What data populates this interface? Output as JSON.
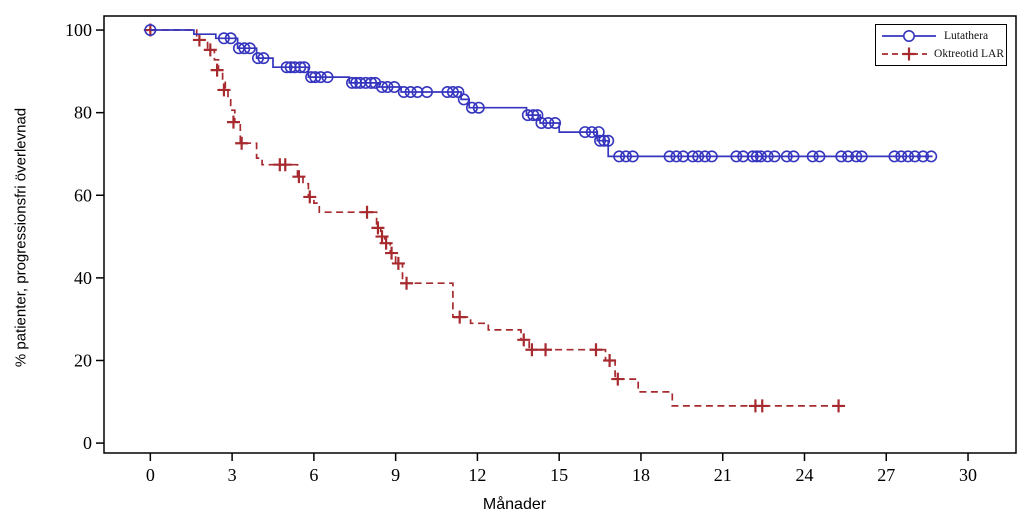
{
  "chart_data": {
    "type": "line",
    "subtype": "kaplan-meier-step",
    "title": "",
    "xlabel": "Månader",
    "ylabel": "% patienter, progressionsfri överlevnad",
    "xlim": [
      -1.7,
      31.76
    ],
    "ylim": [
      -2.4,
      103.4
    ],
    "x_ticks": [
      0,
      3,
      6,
      9,
      12,
      15,
      18,
      21,
      24,
      27,
      30
    ],
    "y_ticks": [
      0,
      20,
      40,
      60,
      80,
      100
    ],
    "grid": false,
    "legend_position": "top-right",
    "frame": true,
    "axis_color": "#000000",
    "series": [
      {
        "name": "Lutathera",
        "color": "#3535BE",
        "line_style": "solid",
        "marker": "circle",
        "steps": [
          [
            0,
            100
          ],
          [
            1.6,
            99
          ],
          [
            2.4,
            98
          ],
          [
            3.2,
            95.6
          ],
          [
            3.9,
            93.2
          ],
          [
            4.5,
            91.0
          ],
          [
            5.8,
            88.6
          ],
          [
            7.3,
            87.2
          ],
          [
            8.4,
            86.2
          ],
          [
            9.2,
            85.0
          ],
          [
            11.4,
            83.2
          ],
          [
            11.7,
            81.2
          ],
          [
            13.8,
            79.4
          ],
          [
            14.3,
            77.5
          ],
          [
            15.0,
            75.3
          ],
          [
            16.4,
            73.2
          ],
          [
            16.8,
            69.4
          ],
          [
            28.7,
            69.4
          ]
        ],
        "censor_marks": [
          [
            0,
            100
          ],
          [
            2.7,
            98
          ],
          [
            2.95,
            98
          ],
          [
            3.25,
            95.6
          ],
          [
            3.45,
            95.6
          ],
          [
            3.65,
            95.6
          ],
          [
            3.95,
            93.2
          ],
          [
            4.15,
            93.2
          ],
          [
            5.0,
            91.0
          ],
          [
            5.15,
            91.0
          ],
          [
            5.3,
            91.0
          ],
          [
            5.5,
            91.0
          ],
          [
            5.65,
            91.0
          ],
          [
            5.9,
            88.6
          ],
          [
            6.05,
            88.6
          ],
          [
            6.25,
            88.6
          ],
          [
            6.5,
            88.6
          ],
          [
            7.4,
            87.2
          ],
          [
            7.55,
            87.2
          ],
          [
            7.7,
            87.2
          ],
          [
            7.9,
            87.2
          ],
          [
            8.1,
            87.2
          ],
          [
            8.25,
            87.2
          ],
          [
            8.5,
            86.2
          ],
          [
            8.7,
            86.2
          ],
          [
            8.95,
            86.2
          ],
          [
            9.3,
            85.0
          ],
          [
            9.55,
            85.0
          ],
          [
            9.8,
            85.0
          ],
          [
            10.15,
            85.0
          ],
          [
            10.9,
            85.0
          ],
          [
            11.1,
            85.0
          ],
          [
            11.3,
            85.0
          ],
          [
            11.5,
            83.2
          ],
          [
            11.8,
            81.2
          ],
          [
            12.05,
            81.2
          ],
          [
            13.85,
            79.4
          ],
          [
            14.05,
            79.4
          ],
          [
            14.2,
            79.4
          ],
          [
            14.35,
            77.5
          ],
          [
            14.6,
            77.5
          ],
          [
            14.85,
            77.5
          ],
          [
            15.95,
            75.3
          ],
          [
            16.2,
            75.3
          ],
          [
            16.45,
            75.3
          ],
          [
            16.5,
            73.2
          ],
          [
            16.65,
            73.2
          ],
          [
            16.8,
            73.2
          ],
          [
            17.2,
            69.4
          ],
          [
            17.45,
            69.4
          ],
          [
            17.7,
            69.4
          ],
          [
            19.05,
            69.4
          ],
          [
            19.3,
            69.4
          ],
          [
            19.55,
            69.4
          ],
          [
            19.9,
            69.4
          ],
          [
            20.1,
            69.4
          ],
          [
            20.35,
            69.4
          ],
          [
            20.6,
            69.4
          ],
          [
            21.5,
            69.4
          ],
          [
            21.75,
            69.4
          ],
          [
            22.1,
            69.4
          ],
          [
            22.25,
            69.4
          ],
          [
            22.4,
            69.4
          ],
          [
            22.65,
            69.4
          ],
          [
            22.9,
            69.4
          ],
          [
            23.35,
            69.4
          ],
          [
            23.6,
            69.4
          ],
          [
            24.3,
            69.4
          ],
          [
            24.55,
            69.4
          ],
          [
            25.35,
            69.4
          ],
          [
            25.6,
            69.4
          ],
          [
            25.9,
            69.4
          ],
          [
            26.1,
            69.4
          ],
          [
            27.3,
            69.4
          ],
          [
            27.55,
            69.4
          ],
          [
            27.8,
            69.4
          ],
          [
            28.05,
            69.4
          ],
          [
            28.35,
            69.4
          ],
          [
            28.65,
            69.4
          ]
        ]
      },
      {
        "name": "Oktreotid LAR",
        "color": "#A62A2E",
        "line_style": "dashed",
        "marker": "plus",
        "steps": [
          [
            0,
            100
          ],
          [
            1.7,
            97.6
          ],
          [
            2.1,
            95.2
          ],
          [
            2.35,
            92.8
          ],
          [
            2.5,
            90.3
          ],
          [
            2.65,
            87.9
          ],
          [
            2.75,
            85.5
          ],
          [
            2.85,
            83.1
          ],
          [
            2.95,
            80.6
          ],
          [
            3.1,
            77.7
          ],
          [
            3.3,
            72.6
          ],
          [
            3.9,
            69.0
          ],
          [
            4.1,
            67.4
          ],
          [
            5.4,
            64.5
          ],
          [
            5.6,
            62.8
          ],
          [
            5.8,
            59.6
          ],
          [
            6.0,
            58.1
          ],
          [
            6.2,
            55.9
          ],
          [
            8.3,
            52.1
          ],
          [
            8.45,
            50.0
          ],
          [
            8.6,
            48.4
          ],
          [
            8.8,
            46.0
          ],
          [
            9.0,
            43.5
          ],
          [
            9.25,
            38.7
          ],
          [
            11.1,
            30.5
          ],
          [
            11.75,
            29.0
          ],
          [
            12.4,
            27.4
          ],
          [
            13.6,
            25.0
          ],
          [
            13.9,
            22.6
          ],
          [
            16.7,
            20.0
          ],
          [
            17.05,
            15.5
          ],
          [
            17.9,
            12.4
          ],
          [
            19.15,
            9.0
          ],
          [
            25.35,
            9.0
          ]
        ],
        "censor_marks": [
          [
            0,
            100
          ],
          [
            1.8,
            97.6
          ],
          [
            2.2,
            95.2
          ],
          [
            2.45,
            90.3
          ],
          [
            2.7,
            85.5
          ],
          [
            3.05,
            77.7
          ],
          [
            3.35,
            72.6
          ],
          [
            4.75,
            67.4
          ],
          [
            4.95,
            67.4
          ],
          [
            5.45,
            64.5
          ],
          [
            5.85,
            59.6
          ],
          [
            7.95,
            55.9
          ],
          [
            8.35,
            52.1
          ],
          [
            8.5,
            50.0
          ],
          [
            8.65,
            48.4
          ],
          [
            8.85,
            46.0
          ],
          [
            9.1,
            43.5
          ],
          [
            9.4,
            38.7
          ],
          [
            11.35,
            30.5
          ],
          [
            13.7,
            25.0
          ],
          [
            14.0,
            22.6
          ],
          [
            14.5,
            22.6
          ],
          [
            16.35,
            22.6
          ],
          [
            16.85,
            20.0
          ],
          [
            17.15,
            15.5
          ],
          [
            22.2,
            9.0
          ],
          [
            22.45,
            9.0
          ],
          [
            25.25,
            9.0
          ]
        ]
      }
    ]
  }
}
